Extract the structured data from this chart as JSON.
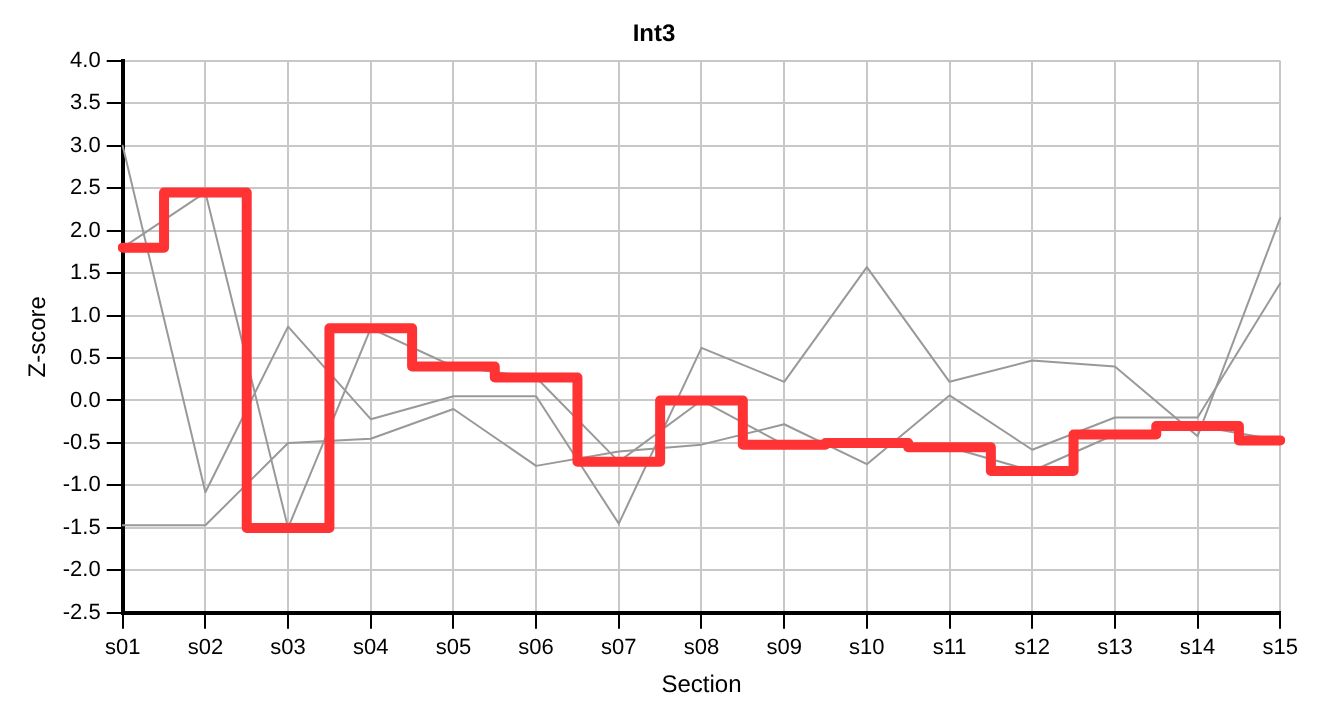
{
  "chart_data": {
    "type": "line",
    "title": "Int3",
    "xlabel": "Section",
    "ylabel": "Z-score",
    "categories": [
      "s01",
      "s02",
      "s03",
      "s04",
      "s05",
      "s06",
      "s07",
      "s08",
      "s09",
      "s10",
      "s11",
      "s12",
      "s13",
      "s14",
      "s15"
    ],
    "series": [
      {
        "color": "#999999",
        "values": [
          3.0,
          -1.08,
          0.87,
          -0.22,
          0.05,
          0.05,
          -1.45,
          0.62,
          0.22,
          1.57,
          0.22,
          0.47,
          0.4,
          -0.42,
          2.15
        ]
      },
      {
        "color": "#999999",
        "values": [
          -1.47,
          -1.47,
          -0.5,
          -0.45,
          -0.1,
          -0.77,
          -0.6,
          -0.52,
          -0.28,
          -0.75,
          0.06,
          -0.58,
          -0.2,
          -0.2,
          1.38
        ]
      },
      {
        "color": "#999999",
        "values": [
          1.8,
          2.45,
          -1.5,
          0.85,
          0.4,
          0.27,
          -0.72,
          0.0,
          -0.52,
          -0.5,
          -0.55,
          -0.83,
          -0.4,
          -0.3,
          -0.47
        ]
      },
      {
        "type": "step",
        "color": "#ff3333",
        "values": [
          1.8,
          2.45,
          -1.5,
          0.85,
          0.4,
          0.27,
          -0.72,
          0.0,
          -0.52,
          -0.5,
          -0.55,
          -0.83,
          -0.4,
          -0.3,
          -0.47
        ]
      }
    ],
    "ylim": [
      -2.5,
      4.0
    ],
    "yticks": [
      -2.5,
      {
        "value": -2,
        "label": "-2.0"
      },
      -1.5,
      {
        "value": -1,
        "label": "-1.0"
      },
      -0.5,
      {
        "value": 0,
        "label": "0.0"
      },
      0.5,
      {
        "value": 1,
        "label": "1.0"
      },
      1.5,
      {
        "value": 2,
        "label": "2.0"
      },
      2.5,
      {
        "value": 3,
        "label": "3.0"
      },
      3.5,
      {
        "value": 4,
        "label": "4.0"
      }
    ],
    "grid": true,
    "legend": false,
    "marker": "none",
    "line_style": "solid"
  }
}
